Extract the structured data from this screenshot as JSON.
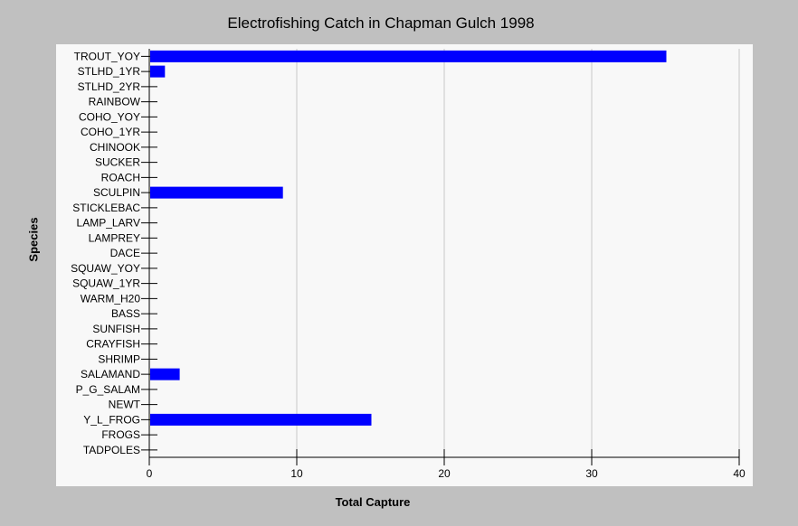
{
  "chart_data": {
    "type": "bar",
    "orientation": "horizontal",
    "title": "Electrofishing Catch in Chapman Gulch 1998",
    "xlabel": "Total Capture",
    "ylabel": "Species",
    "xlim": [
      0,
      40
    ],
    "xticks": [
      0,
      10,
      20,
      30,
      40
    ],
    "grid": true,
    "categories": [
      "TROUT_YOY",
      "STLHD_1YR",
      "STLHD_2YR",
      "RAINBOW",
      "COHO_YOY",
      "COHO_1YR",
      "CHINOOK",
      "SUCKER",
      "ROACH",
      "SCULPIN",
      "STICKLEBAC",
      "LAMP_LARV",
      "LAMPREY",
      "DACE",
      "SQUAW_YOY",
      "SQUAW_1YR",
      "WARM_H20",
      "BASS",
      "SUNFISH",
      "CRAYFISH",
      "SHRIMP",
      "SALAMAND",
      "P_G_SALAM",
      "NEWT",
      "Y_L_FROG",
      "FROGS",
      "TADPOLES"
    ],
    "values": [
      35,
      1,
      0,
      0,
      0,
      0,
      0,
      0,
      0,
      9,
      0,
      0,
      0,
      0,
      0,
      0,
      0,
      0,
      0,
      0,
      0,
      2,
      0,
      0,
      15,
      0,
      0
    ],
    "bar_color": "#0000ff"
  }
}
